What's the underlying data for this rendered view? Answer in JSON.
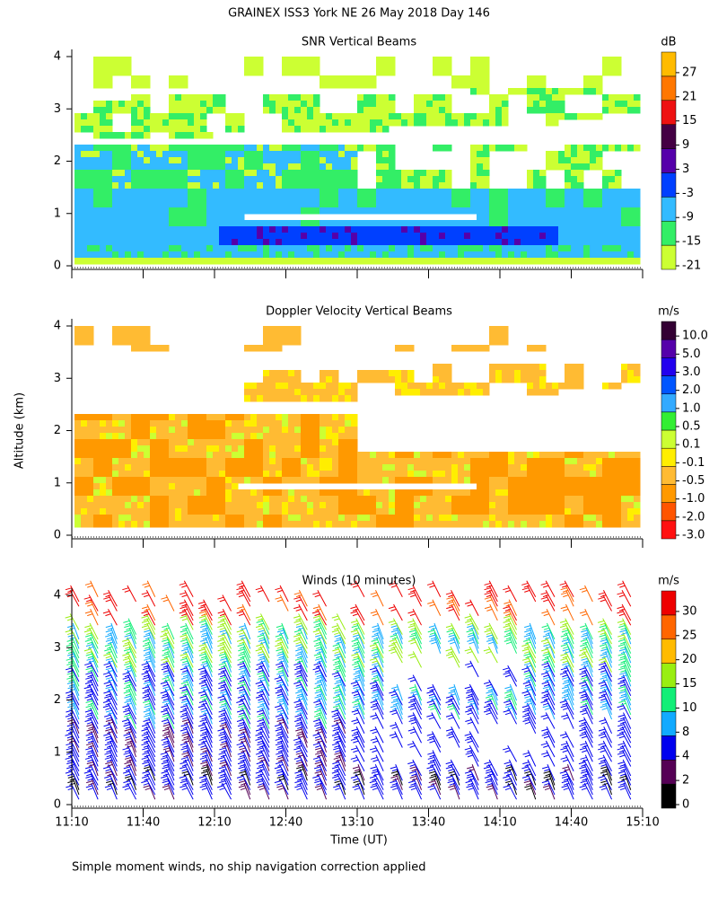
{
  "page_title": "GRAINEX ISS3 York NE  26 May 2018 Day 146",
  "footnote": "Simple moment winds, no ship navigation correction applied",
  "chart_data": [
    {
      "type": "heatmap",
      "title": "SNR Vertical Beams",
      "ylim": [
        0,
        4
      ],
      "yticks": [
        0,
        1,
        2,
        3,
        4
      ],
      "xlim": [
        670,
        910
      ],
      "xticks": [
        670,
        700,
        730,
        760,
        790,
        820,
        850,
        880,
        910
      ],
      "colorbar": {
        "unit": "dB",
        "levels": [
          -21,
          -15,
          -9,
          -3,
          3,
          9,
          15,
          21,
          27
        ],
        "colors": [
          "#ccff33",
          "#33ee66",
          "#33bbff",
          "#0040ff",
          "#5500aa",
          "#440044",
          "#ee1111",
          "#ff7700",
          "#ffbb00"
        ]
      }
    },
    {
      "type": "heatmap",
      "title": "Doppler Velocity Vertical Beams",
      "y_label": "Altitude (km)",
      "ylim": [
        0,
        4
      ],
      "yticks": [
        0,
        1,
        2,
        3,
        4
      ],
      "xlim": [
        670,
        910
      ],
      "xticks": [
        670,
        700,
        730,
        760,
        790,
        820,
        850,
        880,
        910
      ],
      "colorbar": {
        "unit": "m/s",
        "levels": [
          {
            "value": -3,
            "label": "-3.0"
          },
          {
            "value": -2,
            "label": "-2.0"
          },
          {
            "value": -1,
            "label": "-1.0"
          },
          {
            "value": -0.5,
            "label": "-0.5"
          },
          {
            "value": -0.1,
            "label": "-0.1"
          },
          {
            "value": 0.1,
            "label": "0.1"
          },
          {
            "value": 0.5,
            "label": "0.5"
          },
          {
            "value": 1,
            "label": "1.0"
          },
          {
            "value": 2,
            "label": "2.0"
          },
          {
            "value": 3,
            "label": "3.0"
          },
          {
            "value": 5,
            "label": "5.0"
          },
          {
            "value": 10,
            "label": "10.0"
          }
        ],
        "colors": [
          "#ff1111",
          "#ff5500",
          "#ff9900",
          "#ffbb33",
          "#ffee00",
          "#ccff33",
          "#33ee33",
          "#33aaff",
          "#0055ff",
          "#2200ee",
          "#5500aa",
          "#330033"
        ]
      }
    },
    {
      "type": "barbs",
      "title": "Winds (10 minutes)",
      "x_label": "Time (UT)",
      "ylim": [
        0,
        4
      ],
      "yticks": [
        0,
        1,
        2,
        3,
        4
      ],
      "xlim": [
        670,
        910
      ],
      "xticks": [
        {
          "value": 670,
          "label": "11:10"
        },
        {
          "value": 700,
          "label": "11:40"
        },
        {
          "value": 730,
          "label": "12:10"
        },
        {
          "value": 760,
          "label": "12:40"
        },
        {
          "value": 790,
          "label": "13:10"
        },
        {
          "value": 820,
          "label": "13:40"
        },
        {
          "value": 850,
          "label": "14:10"
        },
        {
          "value": 880,
          "label": "14:40"
        },
        {
          "value": 910,
          "label": "15:10"
        }
      ],
      "colorbar": {
        "unit": "m/s",
        "levels": [
          0,
          2,
          4,
          8,
          10,
          15,
          20,
          25,
          30
        ],
        "colors": [
          "#000000",
          "#550055",
          "#0000ee",
          "#11aaff",
          "#11ee77",
          "#99ee11",
          "#ffbb00",
          "#ff6600",
          "#ee0000"
        ]
      }
    }
  ]
}
